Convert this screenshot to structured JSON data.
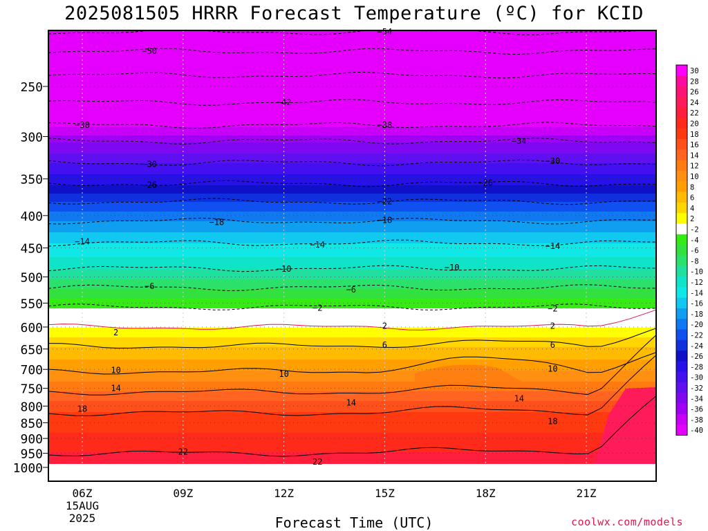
{
  "chart_data": {
    "type": "heatmap",
    "title": "2025081505 HRRR Forecast Temperature (ºC) for KCID",
    "xlabel": "Forecast Time (UTC)",
    "ylabel": "",
    "credit": "coolwx.com/models",
    "x_ticks": [
      "06Z",
      "09Z",
      "12Z",
      "15Z",
      "18Z",
      "21Z"
    ],
    "x_date_line1": "15AUG",
    "x_date_line2": "2025",
    "y_ticks": [
      250,
      300,
      350,
      400,
      450,
      500,
      550,
      600,
      650,
      700,
      750,
      800,
      850,
      900,
      950,
      1000
    ],
    "y_scale": "log-pressure (hPa)",
    "ylim": [
      1000,
      200
    ],
    "colorbar_labels": [
      "30",
      "28",
      "26",
      "24",
      "22",
      "20",
      "18",
      "16",
      "14",
      "12",
      "10",
      "8",
      "6",
      "4",
      "2",
      "-2",
      "-4",
      "-6",
      "-8",
      "-10",
      "-12",
      "-14",
      "-16",
      "-18",
      "-20",
      "-22",
      "-24",
      "-26",
      "-28",
      "-30",
      "-32",
      "-34",
      "-36",
      "-38",
      "-40"
    ],
    "colorbar_colors": [
      "#ff00ff",
      "#ff0aa0",
      "#ff1276",
      "#ff1a5a",
      "#ff1e3c",
      "#ff2a1a",
      "#ff3a10",
      "#ff4f1a",
      "#ff6420",
      "#ff7a10",
      "#ff9010",
      "#ffa000",
      "#ffbb00",
      "#ffd600",
      "#ffff00",
      "#ffffff",
      "#34ec14",
      "#32e040",
      "#2ce06c",
      "#20e0a0",
      "#10e4c8",
      "#10e8e8",
      "#10c8f0",
      "#109ef0",
      "#1078f0",
      "#1050f0",
      "#1030e0",
      "#1010c8",
      "#2810e8",
      "#4410f0",
      "#6010f0",
      "#8008f0",
      "#a000f4",
      "#c800f8",
      "#e400fc"
    ],
    "isotherm_labels": [
      {
        "value": -54,
        "time": "15Z",
        "pressure": 205
      },
      {
        "value": -50,
        "time": "08Z",
        "pressure": 220
      },
      {
        "value": -42,
        "time": "12Z",
        "pressure": 265
      },
      {
        "value": -38,
        "time": "06Z",
        "pressure": 288
      },
      {
        "value": -38,
        "time": "15Z",
        "pressure": 288
      },
      {
        "value": -34,
        "time": "19Z",
        "pressure": 305
      },
      {
        "value": -30,
        "time": "08Z",
        "pressure": 332
      },
      {
        "value": -30,
        "time": "20Z",
        "pressure": 328
      },
      {
        "value": -26,
        "time": "08Z",
        "pressure": 358
      },
      {
        "value": -26,
        "time": "18Z",
        "pressure": 355
      },
      {
        "value": -22,
        "time": "15Z",
        "pressure": 380
      },
      {
        "value": -18,
        "time": "10Z",
        "pressure": 410
      },
      {
        "value": -18,
        "time": "15Z",
        "pressure": 407
      },
      {
        "value": -14,
        "time": "06Z",
        "pressure": 440
      },
      {
        "value": -14,
        "time": "13Z",
        "pressure": 445
      },
      {
        "value": -14,
        "time": "20Z",
        "pressure": 447
      },
      {
        "value": -10,
        "time": "12Z",
        "pressure": 486
      },
      {
        "value": -10,
        "time": "17Z",
        "pressure": 483
      },
      {
        "value": -6,
        "time": "08Z",
        "pressure": 517
      },
      {
        "value": -6,
        "time": "14Z",
        "pressure": 524
      },
      {
        "value": -2,
        "time": "13Z",
        "pressure": 560
      },
      {
        "value": -2,
        "time": "20Z",
        "pressure": 561
      },
      {
        "value": 2,
        "time": "07Z",
        "pressure": 612
      },
      {
        "value": 2,
        "time": "15Z",
        "pressure": 598
      },
      {
        "value": 2,
        "time": "20Z",
        "pressure": 598
      },
      {
        "value": 6,
        "time": "15Z",
        "pressure": 641
      },
      {
        "value": 6,
        "time": "20Z",
        "pressure": 641
      },
      {
        "value": 10,
        "time": "07Z",
        "pressure": 702
      },
      {
        "value": 10,
        "time": "12Z",
        "pressure": 712
      },
      {
        "value": 10,
        "time": "20Z",
        "pressure": 699
      },
      {
        "value": 14,
        "time": "07Z",
        "pressure": 750
      },
      {
        "value": 14,
        "time": "14Z",
        "pressure": 790
      },
      {
        "value": 14,
        "time": "19Z",
        "pressure": 779
      },
      {
        "value": 18,
        "time": "06Z",
        "pressure": 808
      },
      {
        "value": 18,
        "time": "20Z",
        "pressure": 846
      },
      {
        "value": 22,
        "time": "09Z",
        "pressure": 945
      },
      {
        "value": 22,
        "time": "13Z",
        "pressure": 980
      }
    ]
  }
}
